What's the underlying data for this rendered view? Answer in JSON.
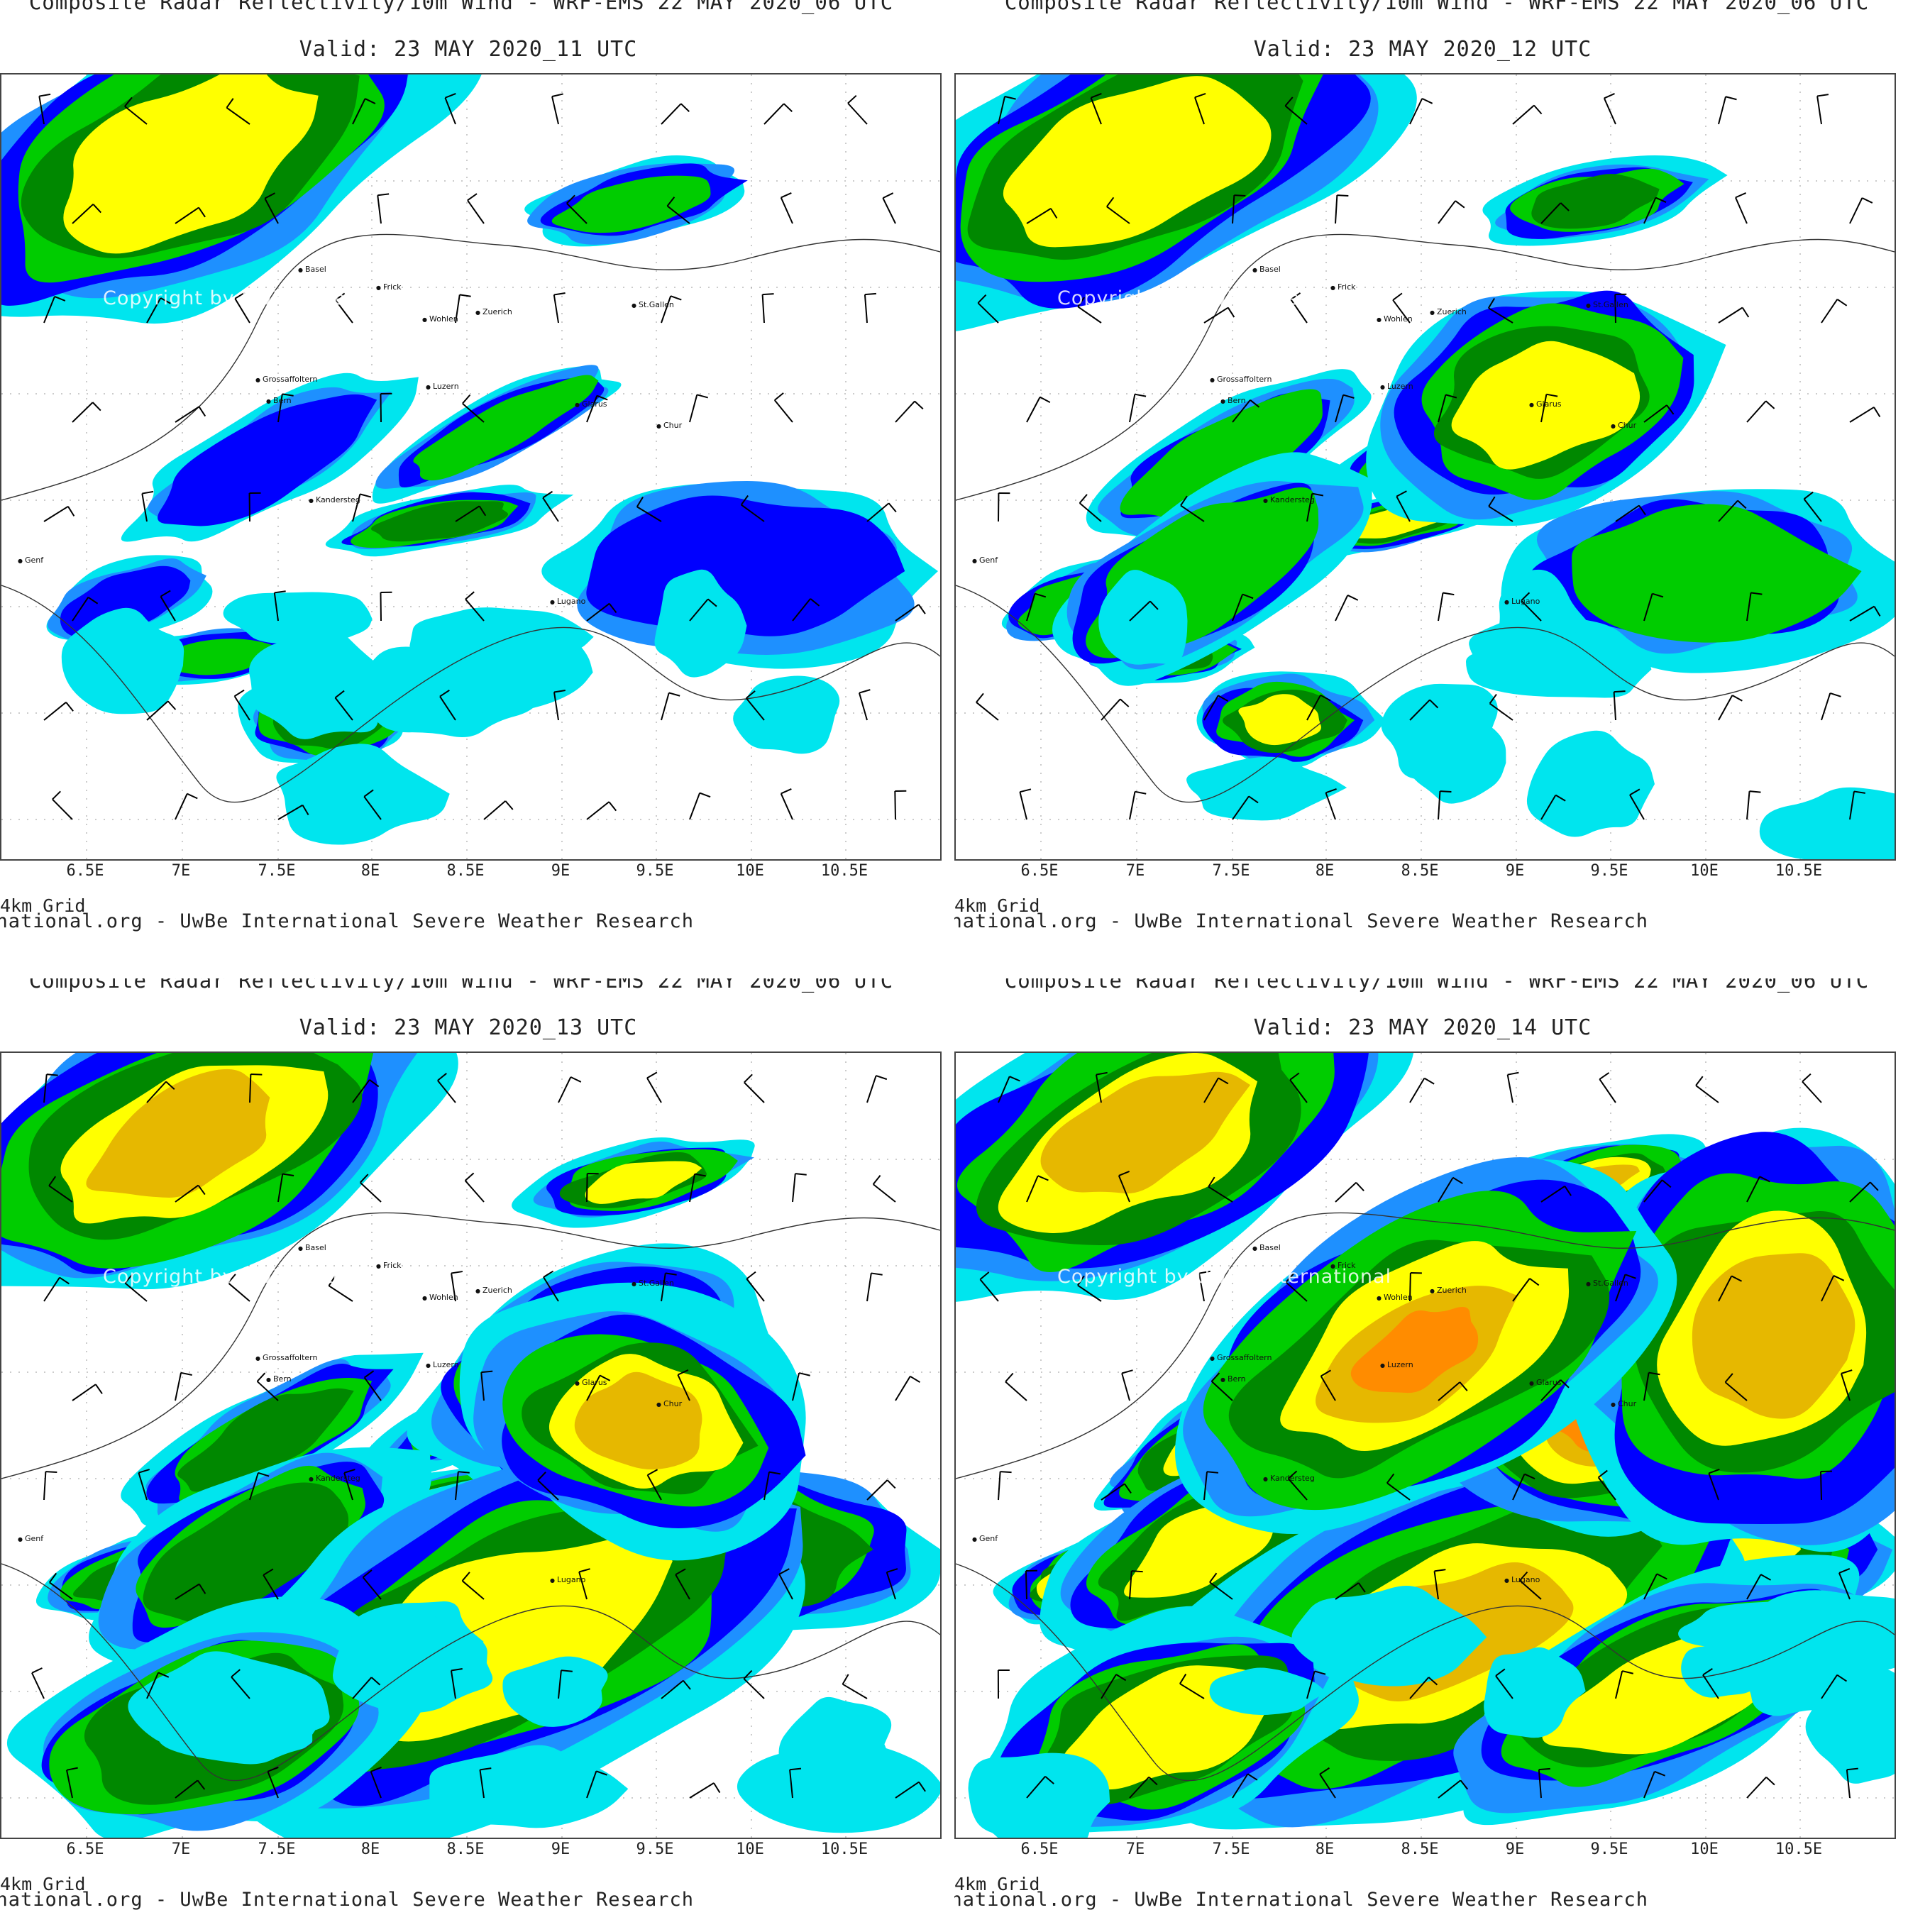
{
  "panels": [
    {
      "title": "Composite Radar Reflectivity/10m Wind - WRF-EMS 22 MAY 2020_06 UTC",
      "valid": "Valid: 23 MAY 2020_11 UTC",
      "level": 1
    },
    {
      "title": "Composite Radar Reflectivity/10m Wind - WRF-EMS 22 MAY 2020_06 UTC",
      "valid": "Valid: 23 MAY 2020_12 UTC",
      "level": 2
    },
    {
      "title": "Composite Radar Reflectivity/10m Wind - WRF-EMS 22 MAY 2020_06 UTC",
      "valid": "Valid: 23 MAY 2020_13 UTC",
      "level": 3
    },
    {
      "title": "Composite Radar Reflectivity/10m Wind - WRF-EMS 22 MAY 2020_06 UTC",
      "valid": "Valid: 23 MAY 2020_14 UTC",
      "level": 4
    }
  ],
  "x_ticks": [
    "6.5E",
    "7E",
    "7.5E",
    "8E",
    "8.5E",
    "9E",
    "9.5E",
    "10E",
    "10.5E"
  ],
  "grid_label": "4km Grid",
  "footer": "ernational.org - UwBe International Severe Weather Research",
  "copyright": "Copyright by UwBe International",
  "cities": [
    "Basel",
    "Frick",
    "Wohlen",
    "Zuerich",
    "St.Gallen",
    "Grossaffoltern",
    "Bern",
    "Luzern",
    "Glarus",
    "Chur",
    "Kandersteg",
    "Genf",
    "Lugano"
  ],
  "colors": {
    "cyan": "#00e5ee",
    "lightblue": "#1e90ff",
    "blue": "#0000ff",
    "green": "#00cc00",
    "darkgreen": "#008800",
    "yellow": "#ffff00",
    "gold": "#e6b800",
    "orange": "#ff8c00",
    "red": "#ff0000"
  }
}
